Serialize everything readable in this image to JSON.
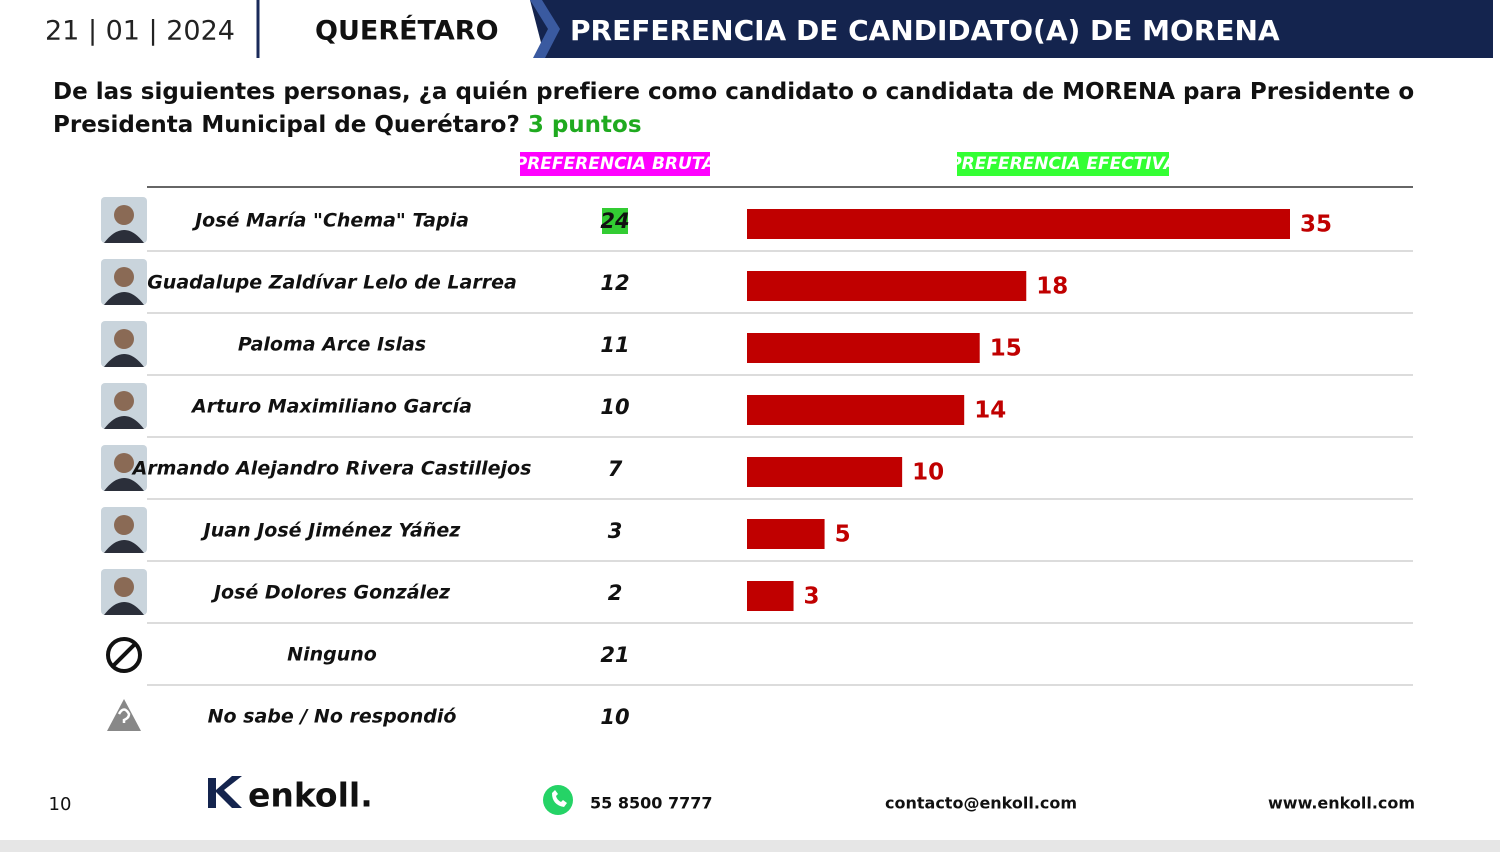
{
  "header": {
    "date": "21 | 01 | 2024",
    "state": "QUERÉTARO",
    "title": "PREFERENCIA DE CANDIDATO(A) DE MORENA"
  },
  "question": {
    "text": "De las siguientes personas, ¿a quién prefiere como candidato o candidata de MORENA para Presidente o Presidenta Municipal de Querétaro?",
    "highlight": "3 puntos"
  },
  "chart_data": {
    "type": "bar",
    "orientation": "horizontal",
    "categories": [
      "José María \"Chema\" Tapia",
      "Guadalupe Zaldívar Lelo de Larrea",
      "Paloma Arce Islas",
      "Arturo Maximiliano García",
      "Armando Alejandro Rivera Castillejos",
      "Juan José Jiménez Yáñez",
      "José Dolores González",
      "Ninguno",
      "No sabe / No respondió"
    ],
    "series": [
      {
        "name": "PREFERENCIA BRUTA",
        "color": "#ff00ff",
        "values": [
          24,
          12,
          11,
          10,
          7,
          3,
          2,
          21,
          10
        ],
        "highlight_index": 0,
        "highlight_color": "#33cc33"
      },
      {
        "name": "PREFERENCIA EFECTIVA",
        "color": "#c00000",
        "header_color": "#33ff33",
        "values": [
          35,
          18,
          15,
          14,
          10,
          5,
          3,
          null,
          null
        ]
      }
    ]
  },
  "footer": {
    "page": "10",
    "logo": "enkoll.",
    "phone": "55 8500 7777",
    "email": "contacto@enkoll.com",
    "web": "www.enkoll.com"
  }
}
